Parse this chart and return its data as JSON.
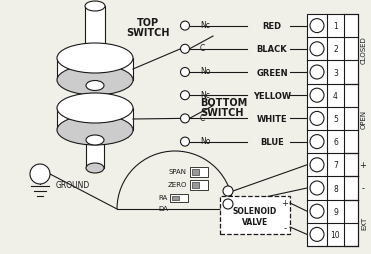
{
  "bg_color": "#f0efe8",
  "line_color": "#1a1a1a",
  "wire_names": [
    "RED",
    "BLACK",
    "GREEN",
    "YELLOW",
    "WHITE",
    "BLUE"
  ],
  "terminal_numbers": [
    "1",
    "2",
    "3",
    "4",
    "5",
    "6",
    "7",
    "8",
    "9",
    "10"
  ],
  "group_labels": [
    {
      "text": "CLOSED",
      "rows": [
        0,
        1,
        2
      ]
    },
    {
      "text": "OPEN",
      "rows": [
        3,
        4,
        5
      ]
    },
    {
      "text": "+",
      "rows": [
        6
      ]
    },
    {
      "text": "-",
      "rows": [
        7
      ]
    },
    {
      "text": "EXT",
      "rows": [
        8,
        9
      ]
    }
  ],
  "top_switch_label": [
    "TOP",
    "SWITCH"
  ],
  "bottom_switch_label": [
    "BOTTOM",
    "SWITCH"
  ],
  "nc_c_no": [
    "Nc",
    "C",
    "No"
  ],
  "ground_label": "GROUND",
  "solenoid_label": [
    "SOLENOID",
    "VALVE"
  ],
  "positioner_labels": [
    "SPAN",
    "ZERO",
    "RA",
    "DA"
  ]
}
